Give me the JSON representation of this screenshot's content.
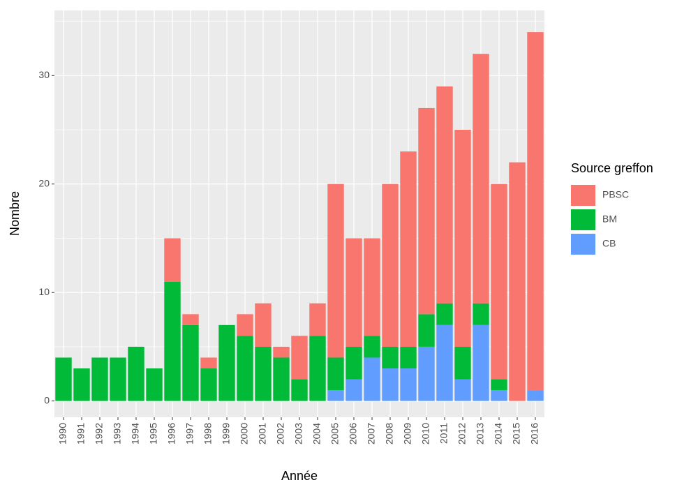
{
  "chart_data": {
    "type": "stacked_bar",
    "x_label": "Année",
    "y_label": "Nombre",
    "legend_title": "Source greffon",
    "categories": [
      "1990",
      "1991",
      "1992",
      "1993",
      "1994",
      "1995",
      "1996",
      "1997",
      "1998",
      "1999",
      "2000",
      "2001",
      "2002",
      "2003",
      "2004",
      "2005",
      "2006",
      "2007",
      "2008",
      "2009",
      "2010",
      "2011",
      "2012",
      "2013",
      "2014",
      "2015",
      "2016"
    ],
    "series": [
      {
        "name": "PBSC",
        "color": "#F8766D",
        "values": [
          0,
          0,
          0,
          0,
          0,
          0,
          4,
          1,
          1,
          0,
          2,
          4,
          1,
          4,
          3,
          16,
          10,
          9,
          15,
          18,
          19,
          20,
          20,
          23,
          18,
          22,
          33
        ]
      },
      {
        "name": "BM",
        "color": "#00BA38",
        "values": [
          4,
          3,
          4,
          4,
          5,
          3,
          11,
          7,
          3,
          7,
          6,
          5,
          4,
          2,
          6,
          3,
          3,
          2,
          2,
          2,
          3,
          2,
          3,
          2,
          1,
          0,
          0
        ]
      },
      {
        "name": "CB",
        "color": "#619CFF",
        "values": [
          0,
          0,
          0,
          0,
          0,
          0,
          0,
          0,
          0,
          0,
          0,
          0,
          0,
          0,
          0,
          1,
          2,
          4,
          3,
          3,
          5,
          7,
          2,
          7,
          1,
          0,
          1
        ]
      }
    ],
    "ylim": [
      -1.5,
      36
    ],
    "yticks": [
      0,
      10,
      20,
      30
    ],
    "grid": true,
    "legend": "right"
  }
}
